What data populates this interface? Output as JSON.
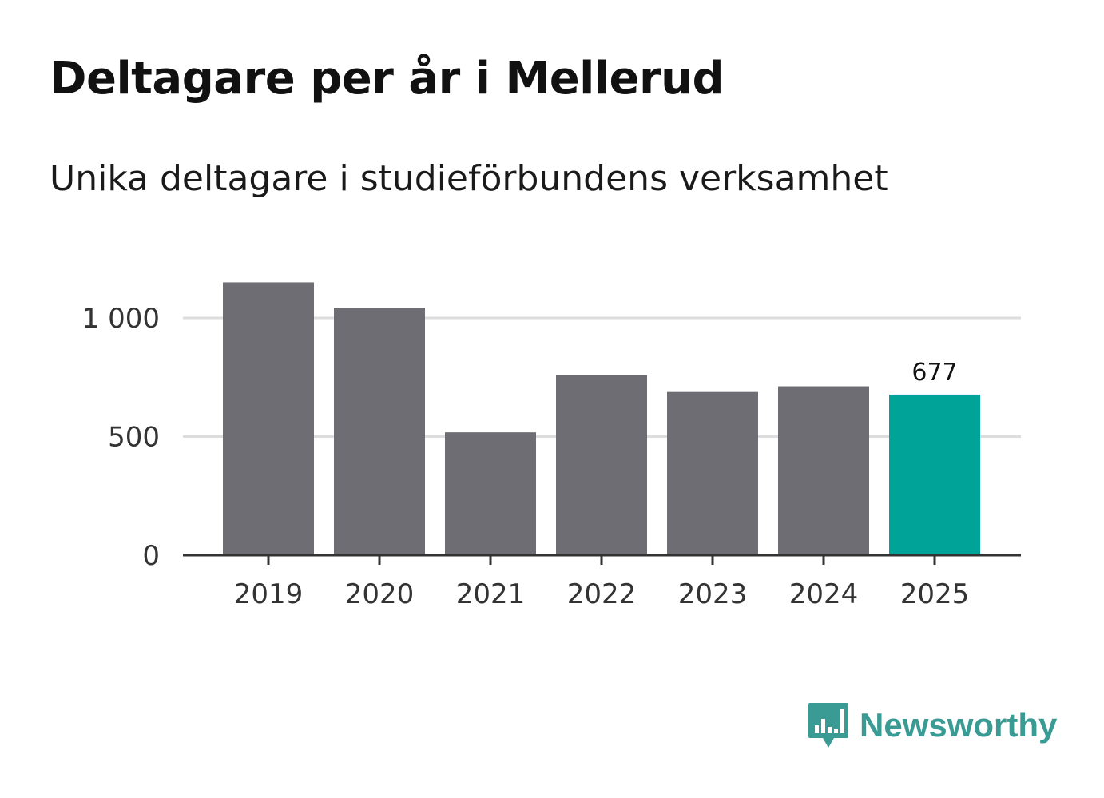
{
  "title": "Deltagare per år i Mellerud",
  "subtitle": "Unika deltagare i studieförbundens verksamhet",
  "brand": {
    "name": "Newsworthy",
    "icon": "newsworthy-logo-icon",
    "color": "#3a9a94"
  },
  "colors": {
    "bar": "#6e6d73",
    "highlight": "#00a398",
    "grid": "#dddddd",
    "axis": "#333333",
    "text": "#333333"
  },
  "chart_data": {
    "type": "bar",
    "title": "Deltagare per år i Mellerud",
    "subtitle": "Unika deltagare i studieförbundens verksamhet",
    "categories": [
      "2019",
      "2020",
      "2021",
      "2022",
      "2023",
      "2024",
      "2025"
    ],
    "values": [
      1150,
      1043,
      518,
      758,
      688,
      712,
      677
    ],
    "highlight_index": 6,
    "data_labels": [
      {
        "index": 6,
        "text": "677"
      }
    ],
    "yticks": [
      {
        "value": 0,
        "label": "0"
      },
      {
        "value": 500,
        "label": "500"
      },
      {
        "value": 1000,
        "label": "1 000"
      }
    ],
    "ylim": [
      0,
      1150
    ],
    "xlabel": "",
    "ylabel": "",
    "grid": true
  }
}
